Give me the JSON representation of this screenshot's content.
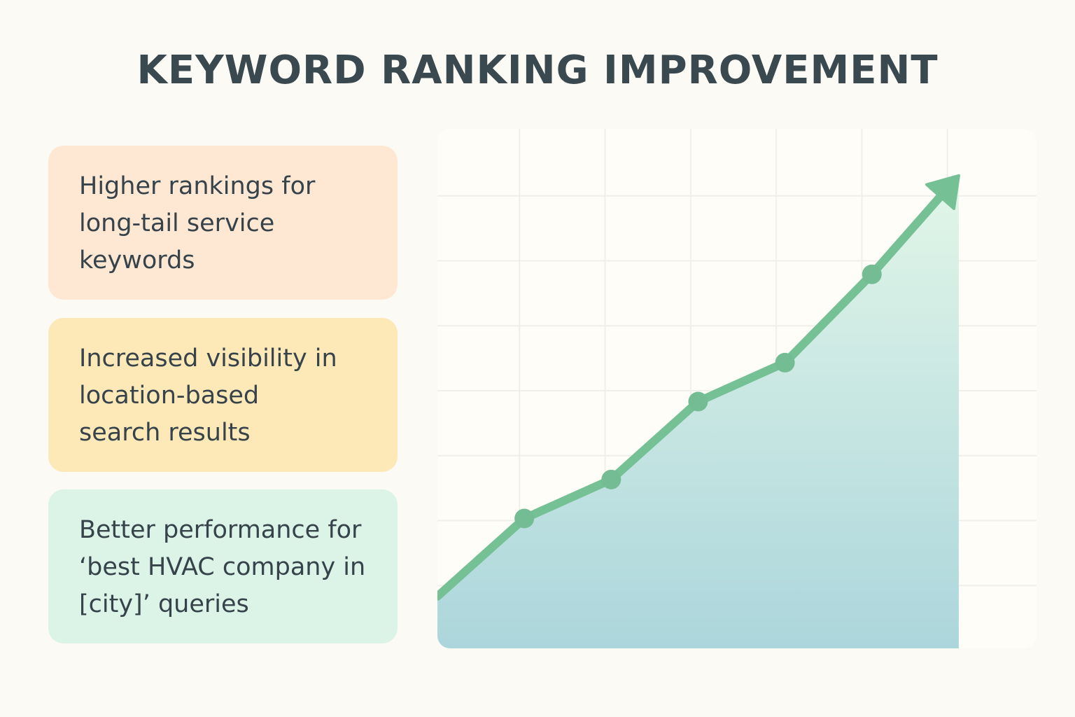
{
  "title": "KEYWORD RANKING IMPROVEMENT",
  "cards": [
    {
      "text": "Higher rankings for\nlong-tail service\nkeywords",
      "color": "#fee8d4"
    },
    {
      "text": "Increased visibility in\nlocation-based\nsearch results",
      "color": "#fde8b8"
    },
    {
      "text": "Better performance for\n‘best HVAC company in\n[city]’ queries",
      "color": "#dcf3e7"
    }
  ],
  "chart_data": {
    "type": "area",
    "title": "",
    "xlabel": "",
    "ylabel": "",
    "grid": true,
    "trend_arrow": true,
    "line_color": "#76c095",
    "fill_top_color": "#e2f6e8",
    "fill_bottom_color": "#acd6dc",
    "points": [
      {
        "x": 0,
        "y": 10
      },
      {
        "x": 1,
        "y": 25
      },
      {
        "x": 2,
        "y": 32.5
      },
      {
        "x": 3,
        "y": 47.5
      },
      {
        "x": 4,
        "y": 55
      },
      {
        "x": 5,
        "y": 72
      },
      {
        "x": 6,
        "y": 91
      }
    ],
    "markers": [
      1,
      2,
      3,
      4,
      5
    ],
    "xlim": [
      0,
      6.5
    ],
    "ylim": [
      0,
      100
    ]
  }
}
